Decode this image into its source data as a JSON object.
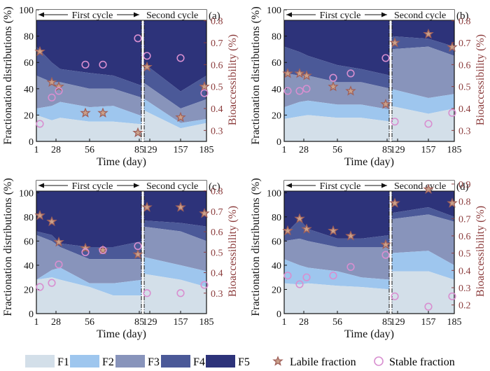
{
  "colors": {
    "F1": "#d3dfe9",
    "F2": "#9ec6ee",
    "F3": "#8894bb",
    "F4": "#4b5998",
    "F5": "#2d337a",
    "labile": "#a0615a",
    "stable": "#d88fd0",
    "right_axis": "#8b3b3b"
  },
  "legend": {
    "f1": "F1",
    "f2": "F2",
    "f3": "F3",
    "f4": "F4",
    "f5": "F5",
    "labile": "Labile fraction",
    "stable": "Stable fraction"
  },
  "chart_data": [
    {
      "panel": "(a)",
      "type": "area",
      "ylabel": "Fractionation distributions (%)",
      "ylabel_right": "Bioaccessibility (%)",
      "xlabel": "Time (day)",
      "cycle1": "First cycle",
      "cycle2": "Second cycle",
      "x_ticks": [
        "1",
        "28",
        "56",
        "85",
        "129",
        "157",
        "185"
      ],
      "y_ticks": [
        "0",
        "20",
        "40",
        "60",
        "80",
        "100"
      ],
      "ylim": [
        0,
        100
      ],
      "right_ticks": [
        "0.3",
        "0.4",
        "0.5",
        "0.6",
        "0.7",
        "0.8"
      ],
      "right_lim": [
        0.25,
        0.85
      ],
      "x": [
        1,
        14,
        24,
        46,
        63,
        100,
        120,
        157,
        185
      ],
      "cumulative": [
        [
          20,
          16,
          18,
          15,
          15,
          13,
          24,
          10,
          14
        ],
        [
          25,
          27,
          30,
          26,
          27,
          19,
          33,
          14,
          17
        ],
        [
          50,
          45,
          45,
          40,
          40,
          33,
          45,
          25,
          32
        ],
        [
          72,
          60,
          55,
          52,
          50,
          42,
          60,
          38,
          50
        ],
        [
          100,
          100,
          100,
          100,
          100,
          100,
          100,
          100,
          100
        ]
      ],
      "labile": {
        "x": [
          1,
          14,
          24,
          46,
          63,
          100,
          120,
          157,
          185
        ],
        "values": [
          0.66,
          0.52,
          0.5,
          0.38,
          0.38,
          0.29,
          0.59,
          0.36,
          0.5
        ]
      },
      "stable": {
        "x": [
          1,
          14,
          24,
          46,
          63,
          100,
          120,
          157,
          185
        ],
        "values": [
          0.33,
          0.45,
          0.48,
          0.6,
          0.6,
          0.72,
          0.64,
          0.63,
          0.47
        ]
      }
    },
    {
      "panel": "(b)",
      "type": "area",
      "ylabel": "Fractionation distributions (%)",
      "ylabel_right": "Bioaccessibility (%)",
      "xlabel": "Time (day)",
      "cycle1": "First cycle",
      "cycle2": "Second  cycle",
      "x_ticks": [
        "1",
        "28",
        "56",
        "85",
        "129",
        "157",
        "185"
      ],
      "y_ticks": [
        "0",
        "20",
        "40",
        "60",
        "80",
        "100"
      ],
      "ylim": [
        0,
        100
      ],
      "right_ticks": [
        "0.3",
        "0.4",
        "0.5",
        "0.6",
        "0.7",
        "0.8"
      ],
      "right_lim": [
        0.25,
        0.85
      ],
      "x": [
        1,
        14,
        24,
        46,
        63,
        100,
        120,
        157,
        185
      ],
      "cumulative": [
        [
          17,
          19,
          20,
          18,
          18,
          15,
          27,
          21,
          25
        ],
        [
          26,
          30,
          31,
          28,
          28,
          24,
          40,
          33,
          36
        ],
        [
          52,
          50,
          50,
          45,
          45,
          40,
          70,
          72,
          65
        ],
        [
          72,
          68,
          65,
          58,
          55,
          50,
          80,
          78,
          72
        ],
        [
          100,
          100,
          100,
          100,
          100,
          100,
          100,
          100,
          100
        ]
      ],
      "labile": {
        "x": [
          1,
          14,
          24,
          46,
          63,
          100,
          120,
          157,
          185
        ],
        "values": [
          0.56,
          0.56,
          0.55,
          0.5,
          0.48,
          0.42,
          0.7,
          0.74,
          0.68
        ]
      },
      "stable": {
        "x": [
          1,
          14,
          24,
          46,
          63,
          100,
          120,
          157,
          185
        ],
        "values": [
          0.48,
          0.48,
          0.49,
          0.54,
          0.56,
          0.63,
          0.34,
          0.33,
          0.38
        ]
      }
    },
    {
      "panel": "(c)",
      "type": "area",
      "ylabel": "Fractionation distributions (%)",
      "ylabel_right": "Bioaccessibility (%)",
      "xlabel": "Time (day)",
      "cycle1": "First cycle",
      "cycle2": "Second  cycle",
      "x_ticks": [
        "1",
        "28",
        "56",
        "85",
        "129",
        "157",
        "185"
      ],
      "y_ticks": [
        "0",
        "20",
        "40",
        "60",
        "80",
        "100"
      ],
      "ylim": [
        0,
        110
      ],
      "right_ticks": [
        "0.3",
        "0.4",
        "0.5",
        "0.6",
        "0.7",
        "0.8"
      ],
      "right_lim": [
        0.2,
        0.85
      ],
      "x": [
        1,
        14,
        24,
        46,
        63,
        100,
        120,
        157,
        185
      ],
      "cumulative": [
        [
          28,
          30,
          28,
          22,
          15,
          15,
          33,
          28,
          22
        ],
        [
          28,
          36,
          38,
          25,
          25,
          28,
          47,
          40,
          35
        ],
        [
          65,
          60,
          55,
          45,
          45,
          45,
          72,
          68,
          60
        ],
        [
          68,
          65,
          58,
          55,
          55,
          60,
          77,
          75,
          72
        ],
        [
          110,
          110,
          110,
          110,
          110,
          110,
          110,
          110,
          110
        ]
      ],
      "labile": {
        "x": [
          1,
          14,
          24,
          46,
          63,
          100,
          120,
          157,
          185
        ],
        "values": [
          0.68,
          0.65,
          0.55,
          0.52,
          0.51,
          0.49,
          0.72,
          0.72,
          0.69
        ]
      },
      "stable": {
        "x": [
          1,
          14,
          24,
          46,
          63,
          100,
          120,
          157,
          185
        ],
        "values": [
          0.33,
          0.35,
          0.44,
          0.5,
          0.51,
          0.53,
          0.3,
          0.3,
          0.34
        ]
      }
    },
    {
      "panel": "(d)",
      "type": "area",
      "ylabel": "Fractionation distributions (%)",
      "ylabel_right": "Bioaccessibility (%)",
      "xlabel": "Time (day)",
      "cycle1": "First cycle",
      "cycle2": "Second  cycle",
      "x_ticks": [
        "1",
        "28",
        "56",
        "85",
        "129",
        "157",
        "185"
      ],
      "y_ticks": [
        "0",
        "20",
        "40",
        "60",
        "80",
        "100"
      ],
      "ylim": [
        0,
        110
      ],
      "right_ticks": [
        "0.2",
        "0.3",
        "0.4",
        "0.5",
        "0.6",
        "0.7",
        "0.8",
        "0.9"
      ],
      "right_lim": [
        0.15,
        0.92
      ],
      "x": [
        1,
        14,
        24,
        46,
        63,
        100,
        120,
        157,
        185
      ],
      "cumulative": [
        [
          25,
          24,
          25,
          23,
          22,
          20,
          35,
          35,
          28
        ],
        [
          45,
          40,
          38,
          35,
          30,
          28,
          50,
          52,
          40
        ],
        [
          60,
          62,
          60,
          55,
          55,
          55,
          78,
          82,
          76
        ],
        [
          65,
          78,
          70,
          62,
          62,
          65,
          83,
          88,
          80
        ],
        [
          110,
          110,
          110,
          110,
          110,
          110,
          110,
          110,
          110
        ]
      ],
      "labile": {
        "x": [
          1,
          14,
          24,
          46,
          63,
          100,
          120,
          157,
          185
        ],
        "values": [
          0.63,
          0.7,
          0.64,
          0.63,
          0.6,
          0.55,
          0.79,
          0.87,
          0.79
        ]
      },
      "stable": {
        "x": [
          1,
          14,
          24,
          46,
          63,
          100,
          120,
          157,
          185
        ],
        "values": [
          0.37,
          0.32,
          0.36,
          0.37,
          0.42,
          0.49,
          0.25,
          0.19,
          0.25
        ]
      }
    }
  ]
}
